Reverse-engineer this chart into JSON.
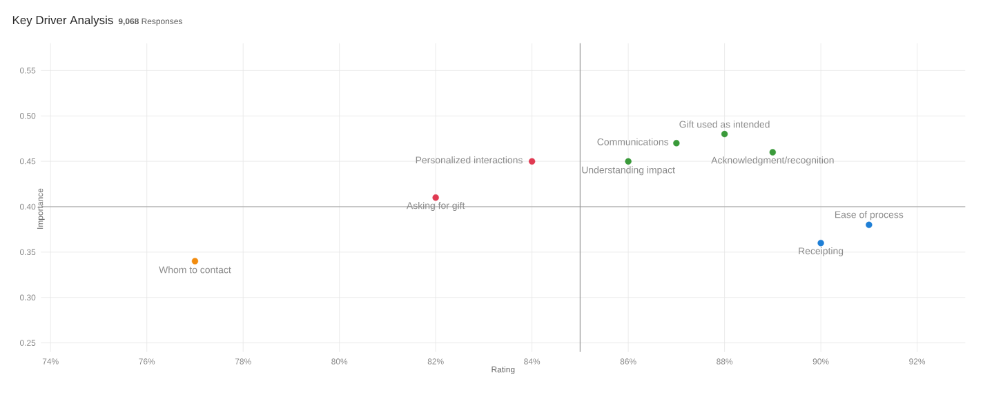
{
  "chart_data": {
    "type": "scatter",
    "title": "Key Driver Analysis",
    "subtitle": "**9,068** Responses",
    "xlabel": "Rating",
    "ylabel": "Importance",
    "x": [
      77,
      82,
      84,
      86,
      87,
      88,
      89,
      90,
      91
    ],
    "values": [
      0.34,
      0.41,
      0.45,
      0.45,
      0.47,
      0.48,
      0.46,
      0.36,
      0.38
    ],
    "colors": [
      "#f28c0f",
      "#e03a52",
      "#e03a52",
      "#3a9a3a",
      "#3a9a3a",
      "#3a9a3a",
      "#3a9a3a",
      "#1f7fd6",
      "#1f7fd6"
    ],
    "annotations": [
      {
        "text": "Whom to contact",
        "x": 77,
        "y": 0.34
      },
      {
        "text": "Asking for gift",
        "x": 82,
        "y": 0.41
      },
      {
        "text": "Personalized interactions",
        "x": 84,
        "y": 0.45
      },
      {
        "text": "Understanding impact",
        "x": 86,
        "y": 0.45
      },
      {
        "text": "Communications",
        "x": 87,
        "y": 0.47
      },
      {
        "text": "Gift used as intended",
        "x": 88,
        "y": 0.48
      },
      {
        "text": "Acknowledgment/recognition",
        "x": 89,
        "y": 0.46
      },
      {
        "text": "Receipting",
        "x": 90,
        "y": 0.36
      },
      {
        "text": "Ease of process",
        "x": 91,
        "y": 0.38
      }
    ],
    "xlim": [
      73.8,
      93
    ],
    "ylim": [
      0.24,
      0.58
    ],
    "xticks": [
      {
        "value": 74,
        "label": "74%"
      },
      {
        "value": 76,
        "label": "76%"
      },
      {
        "value": 78,
        "label": "78%"
      },
      {
        "value": 80,
        "label": "80%"
      },
      {
        "value": 82,
        "label": "82%"
      },
      {
        "value": 84,
        "label": "84%"
      },
      {
        "value": 86,
        "label": "86%"
      },
      {
        "value": 88,
        "label": "88%"
      },
      {
        "value": 90,
        "label": "90%"
      },
      {
        "value": 92,
        "label": "92%"
      }
    ],
    "yticks": [
      {
        "value": 0.25,
        "label": "0.25"
      },
      {
        "value": 0.3,
        "label": "0.30"
      },
      {
        "value": 0.35,
        "label": "0.35"
      },
      {
        "value": 0.4,
        "label": "0.40"
      },
      {
        "value": 0.45,
        "label": "0.45"
      },
      {
        "value": 0.5,
        "label": "0.50"
      },
      {
        "value": 0.55,
        "label": "0.55"
      }
    ],
    "ref_lines": [
      {
        "axis": "x",
        "value": 85,
        "color": "#999999"
      },
      {
        "axis": "y",
        "value": 0.4,
        "color": "#999999"
      }
    ],
    "grid": true
  }
}
